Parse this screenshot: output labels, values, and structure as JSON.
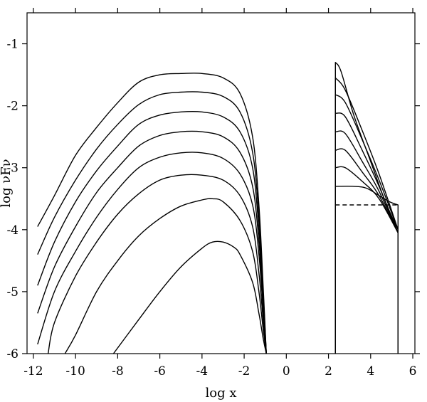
{
  "chart_data": {
    "type": "line",
    "title": "",
    "xlabel": "log x",
    "ylabel": "log νFν",
    "xlim": [
      -12.3,
      6.1
    ],
    "ylim": [
      -6,
      -0.5
    ],
    "xticks": [
      -12,
      -10,
      -8,
      -6,
      -4,
      -2,
      0,
      2,
      4,
      6
    ],
    "xtick_labels": [
      "-12",
      "-10",
      "-8",
      "-6",
      "-4",
      "-2",
      "0",
      "2",
      "4",
      "6"
    ],
    "yticks": [
      -6,
      -5,
      -4,
      -3,
      -2,
      -1
    ],
    "ytick_labels": [
      "-6",
      "-5",
      "-4",
      "-3",
      "-2",
      "-1"
    ],
    "grid": false,
    "legend": "none",
    "series": [
      {
        "style": "solid",
        "x": [
          -11.8,
          -11,
          -10,
          -9,
          -8,
          -7,
          -6,
          -5,
          -4,
          -3,
          -2.2,
          -1.6,
          -1.3,
          -1.1,
          -0.95
        ],
        "y": [
          -3.95,
          -3.45,
          -2.8,
          -2.35,
          -1.95,
          -1.62,
          -1.5,
          -1.48,
          -1.48,
          -1.55,
          -1.8,
          -2.5,
          -3.6,
          -4.9,
          -6
        ]
      },
      {
        "style": "solid",
        "x": [
          -11.8,
          -11,
          -10,
          -9,
          -8,
          -7,
          -6,
          -5,
          -4,
          -3,
          -2.2,
          -1.6,
          -1.3,
          -1.1,
          -0.95
        ],
        "y": [
          -4.4,
          -3.8,
          -3.2,
          -2.7,
          -2.3,
          -1.98,
          -1.82,
          -1.78,
          -1.78,
          -1.85,
          -2.1,
          -2.75,
          -3.8,
          -5.0,
          -6
        ]
      },
      {
        "style": "solid",
        "x": [
          -11.8,
          -11,
          -10,
          -9,
          -8,
          -7,
          -6,
          -5,
          -4,
          -3,
          -2.2,
          -1.6,
          -1.3,
          -1.1,
          -0.95
        ],
        "y": [
          -4.9,
          -4.2,
          -3.55,
          -3.05,
          -2.65,
          -2.3,
          -2.15,
          -2.1,
          -2.1,
          -2.18,
          -2.42,
          -3.0,
          -4.0,
          -5.1,
          -6
        ]
      },
      {
        "style": "solid",
        "x": [
          -11.8,
          -11,
          -10,
          -9,
          -8,
          -7,
          -6,
          -5,
          -4,
          -3,
          -2.2,
          -1.6,
          -1.3,
          -1.1,
          -0.95
        ],
        "y": [
          -5.35,
          -4.6,
          -3.95,
          -3.4,
          -3.0,
          -2.65,
          -2.48,
          -2.42,
          -2.42,
          -2.5,
          -2.75,
          -3.3,
          -4.2,
          -5.2,
          -6
        ]
      },
      {
        "style": "solid",
        "x": [
          -11.8,
          -11,
          -10,
          -9,
          -8,
          -7,
          -6,
          -5,
          -4,
          -3,
          -2.2,
          -1.6,
          -1.3,
          -1.1,
          -0.95
        ],
        "y": [
          -5.85,
          -5.0,
          -4.35,
          -3.8,
          -3.35,
          -3.0,
          -2.83,
          -2.76,
          -2.76,
          -2.85,
          -3.1,
          -3.6,
          -4.4,
          -5.3,
          -6
        ]
      },
      {
        "style": "solid",
        "x": [
          -11.3,
          -11,
          -10,
          -9,
          -8,
          -7,
          -6,
          -5,
          -4,
          -3,
          -2.2,
          -1.6,
          -1.3,
          -1.1,
          -0.95
        ],
        "y": [
          -6.0,
          -5.5,
          -4.75,
          -4.2,
          -3.75,
          -3.42,
          -3.2,
          -3.12,
          -3.12,
          -3.2,
          -3.45,
          -3.95,
          -4.7,
          -5.45,
          -6
        ]
      },
      {
        "style": "solid",
        "x": [
          -10.5,
          -10,
          -9,
          -8,
          -7,
          -6,
          -5,
          -4,
          -3.5,
          -3,
          -2.2,
          -1.6,
          -1.3,
          -1.1,
          -0.95
        ],
        "y": [
          -6.0,
          -5.7,
          -5.0,
          -4.5,
          -4.1,
          -3.82,
          -3.62,
          -3.52,
          -3.5,
          -3.55,
          -3.85,
          -4.35,
          -5.0,
          -5.6,
          -6
        ]
      },
      {
        "style": "solid",
        "x": [
          -8.2,
          -7,
          -6,
          -5,
          -4,
          -3.5,
          -3,
          -2.5,
          -2.2,
          -1.6,
          -1.3,
          -1.1,
          -0.95
        ],
        "y": [
          -6.0,
          -5.45,
          -5.0,
          -4.6,
          -4.3,
          -4.2,
          -4.2,
          -4.28,
          -4.4,
          -4.85,
          -5.35,
          -5.75,
          -6
        ]
      },
      {
        "style": "solid",
        "x": [
          2.33,
          2.33,
          2.6,
          3.2,
          4.0,
          4.7,
          5.3,
          5.3
        ],
        "y": [
          -6.0,
          -1.3,
          -1.45,
          -2.15,
          -2.9,
          -3.55,
          -4.0,
          -6.0
        ]
      },
      {
        "style": "solid",
        "x": [
          2.33,
          2.33,
          2.8,
          3.6,
          4.4,
          5.3,
          5.3
        ],
        "y": [
          -6.0,
          -1.55,
          -1.75,
          -2.4,
          -3.1,
          -4.0,
          -6.0
        ]
      },
      {
        "style": "solid",
        "x": [
          2.33,
          2.33,
          2.8,
          3.6,
          4.4,
          5.3,
          5.3
        ],
        "y": [
          -6.0,
          -1.82,
          -1.95,
          -2.55,
          -3.2,
          -4.0,
          -6.0
        ]
      },
      {
        "style": "solid",
        "x": [
          2.33,
          2.33,
          2.8,
          3.6,
          4.4,
          5.3,
          5.3
        ],
        "y": [
          -6.0,
          -2.12,
          -2.18,
          -2.72,
          -3.3,
          -4.05,
          -6.0
        ]
      },
      {
        "style": "solid",
        "x": [
          2.33,
          2.33,
          2.8,
          3.6,
          4.4,
          5.3,
          5.3
        ],
        "y": [
          -6.0,
          -2.42,
          -2.45,
          -2.9,
          -3.38,
          -4.05,
          -6.0
        ]
      },
      {
        "style": "solid",
        "x": [
          2.33,
          2.33,
          2.8,
          3.6,
          4.4,
          5.3,
          5.3
        ],
        "y": [
          -6.0,
          -2.72,
          -2.72,
          -3.07,
          -3.45,
          -4.05,
          -6.0
        ]
      },
      {
        "style": "solid",
        "x": [
          2.33,
          2.33,
          2.8,
          3.6,
          4.4,
          5.3,
          5.3
        ],
        "y": [
          -6.0,
          -3.0,
          -3.0,
          -3.22,
          -3.5,
          -4.05,
          -6.0
        ]
      },
      {
        "style": "solid",
        "x": [
          2.33,
          2.33,
          3.2,
          3.8,
          4.4,
          4.9,
          5.3,
          5.3
        ],
        "y": [
          -6.0,
          -3.3,
          -3.3,
          -3.33,
          -3.45,
          -3.55,
          -3.6,
          -6.0
        ]
      },
      {
        "style": "dashed",
        "x": [
          2.33,
          5.3
        ],
        "y": [
          -3.6,
          -3.6
        ]
      },
      {
        "style": "dashed",
        "x": [
          2.33,
          2.33
        ],
        "y": [
          -6.0,
          -3.6
        ]
      }
    ]
  }
}
